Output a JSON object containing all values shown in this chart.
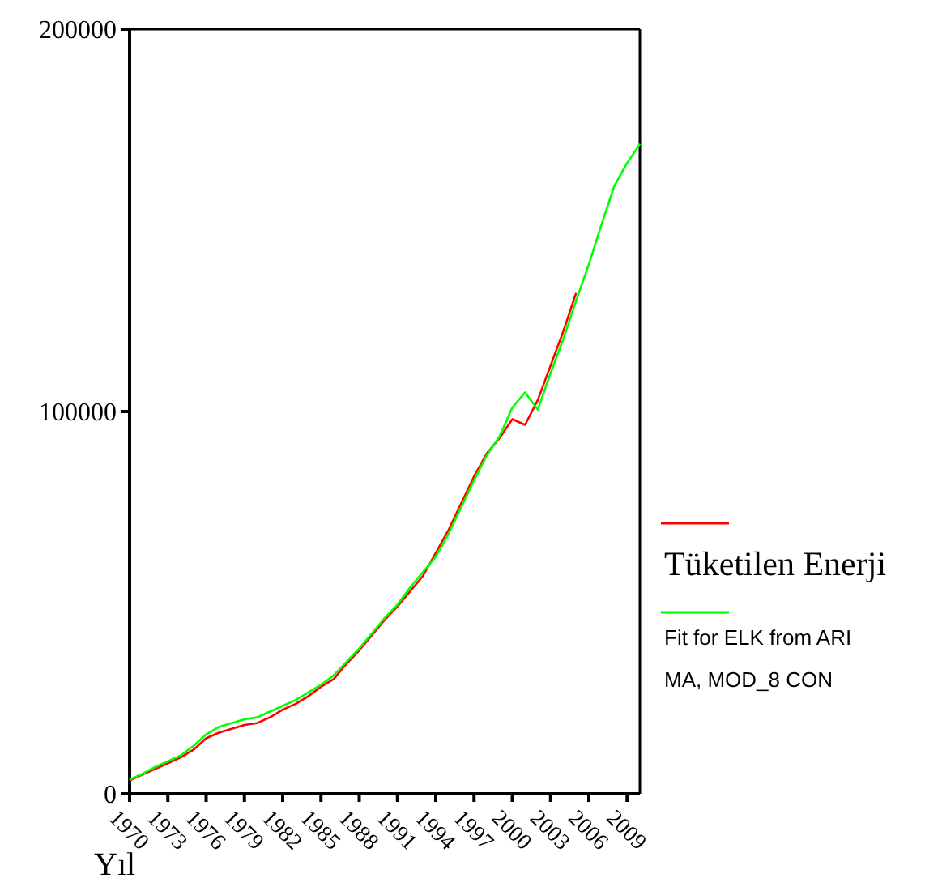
{
  "chart_data": {
    "type": "line",
    "xlabel": "Yıl",
    "categories": [
      "1970",
      null,
      null,
      "1973",
      null,
      null,
      "1976",
      null,
      null,
      "1979",
      null,
      null,
      "1982",
      null,
      null,
      "1985",
      null,
      null,
      "1988",
      null,
      null,
      "1991",
      null,
      null,
      "1994",
      null,
      null,
      "1997",
      null,
      null,
      "2000",
      null,
      null,
      "2003",
      null,
      null,
      "2006",
      null,
      null,
      "2009",
      null
    ],
    "ylim": [
      0,
      200000
    ],
    "yticks": [
      0,
      100000,
      200000
    ],
    "legend": "right",
    "grid": false,
    "series": [
      {
        "name": "Tüketilen Enerji",
        "color": "#ff0000",
        "values": [
          3500,
          5000,
          6500,
          8000,
          9500,
          11500,
          14500,
          16000,
          17000,
          18000,
          18500,
          20000,
          22000,
          23500,
          25500,
          28000,
          30000,
          34000,
          37500,
          41500,
          45500,
          49000,
          53000,
          57000,
          63000,
          69000,
          76000,
          83000,
          89000,
          93000,
          98000,
          96500,
          103000,
          112000,
          121000,
          131000,
          null,
          null,
          null,
          null,
          null
        ]
      },
      {
        "name": "Fit for ELK from ARIMA, MOD_8 CON",
        "color": "#00ff00",
        "values": [
          3700,
          5200,
          7000,
          8500,
          10000,
          12500,
          15500,
          17500,
          18500,
          19500,
          20000,
          21500,
          23000,
          24500,
          26500,
          28500,
          31000,
          34500,
          38000,
          42000,
          46000,
          49500,
          54000,
          58000,
          62000,
          68000,
          75000,
          82000,
          88500,
          93500,
          101000,
          105000,
          100500,
          110000,
          119000,
          129000,
          138500,
          149000,
          159000,
          165000,
          170000
        ]
      }
    ]
  }
}
